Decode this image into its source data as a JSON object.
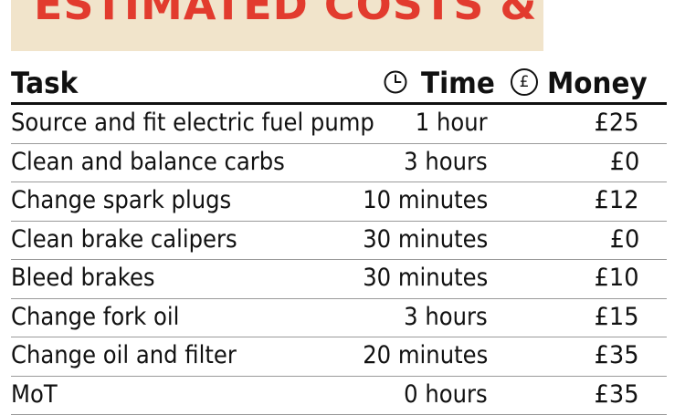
{
  "title": "ESTIMATED COSTS & TIME",
  "colors": {
    "title": "#e23b2e",
    "title_band": "#f1e4cb",
    "text": "#111111"
  },
  "headers": {
    "task": "Task",
    "time_icon": "clock-icon",
    "time": "Time",
    "money_icon": "pound-circle-icon",
    "money_symbol": "£",
    "money": "Money"
  },
  "rows": [
    {
      "task": "Source and fit electric fuel pump",
      "time": "1 hour",
      "money": "£25"
    },
    {
      "task": "Clean and balance carbs",
      "time": "3 hours",
      "money": "£0"
    },
    {
      "task": "Change spark plugs",
      "time": "10 minutes",
      "money": "£12"
    },
    {
      "task": "Clean brake calipers",
      "time": "30 minutes",
      "money": "£0"
    },
    {
      "task": "Bleed brakes",
      "time": "30 minutes",
      "money": "£10"
    },
    {
      "task": "Change fork oil",
      "time": "3 hours",
      "money": "£15"
    },
    {
      "task": "Change oil and filter",
      "time": "20 minutes",
      "money": "£35"
    },
    {
      "task": "MoT",
      "time": "0 hours",
      "money": "£35"
    }
  ]
}
